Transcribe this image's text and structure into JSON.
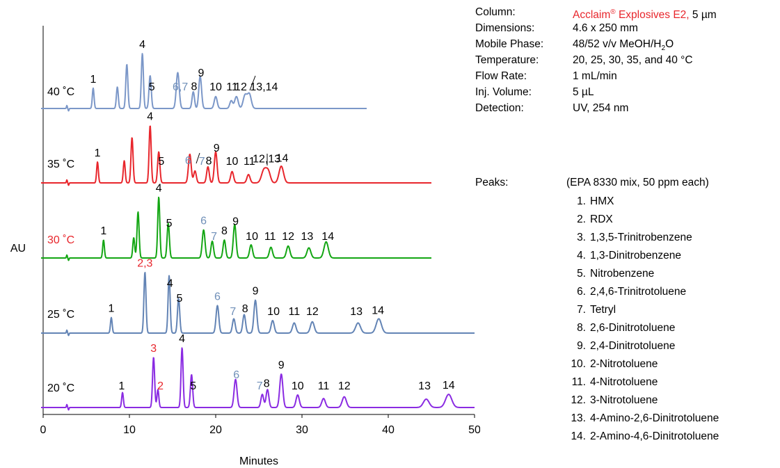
{
  "chart_data": {
    "type": "line",
    "xlabel": "Minutes",
    "ylabel": "AU",
    "xlim": [
      0,
      50
    ],
    "xticks": [
      "0",
      "10",
      "20",
      "30",
      "40",
      "50"
    ],
    "series": [
      {
        "name": "40 ˚C",
        "name_color": "#000000",
        "color": "#7b97c8",
        "end": 37.5,
        "peaks": [
          {
            "t": 5.8,
            "h": 0.34,
            "w": 0.1
          },
          {
            "t": 8.6,
            "h": 0.36,
            "w": 0.11
          },
          {
            "t": 9.7,
            "h": 0.74,
            "w": 0.12
          },
          {
            "t": 11.5,
            "h": 0.92,
            "w": 0.12
          },
          {
            "t": 12.4,
            "h": 0.55,
            "w": 0.13
          },
          {
            "t": 15.6,
            "h": 0.6,
            "w": 0.17
          },
          {
            "t": 17.4,
            "h": 0.28,
            "w": 0.14
          },
          {
            "t": 18.2,
            "h": 0.54,
            "w": 0.16
          },
          {
            "t": 20.0,
            "h": 0.2,
            "w": 0.17
          },
          {
            "t": 21.8,
            "h": 0.13,
            "w": 0.17
          },
          {
            "t": 22.4,
            "h": 0.2,
            "w": 0.2
          },
          {
            "t": 23.4,
            "h": 0.22,
            "w": 0.22
          },
          {
            "t": 23.9,
            "h": 0.24,
            "w": 0.22
          }
        ],
        "labels": [
          {
            "text": "1",
            "t": 5.8,
            "color": "#000000"
          },
          {
            "text": "4",
            "t": 11.5,
            "color": "#000000"
          },
          {
            "text": "5",
            "t": 12.6,
            "color": "#000000"
          },
          {
            "text": "6,7",
            "t": 15.9,
            "color": "#6f8fb8"
          },
          {
            "text": "8",
            "t": 17.5,
            "color": "#000000"
          },
          {
            "text": "9",
            "t": 18.3,
            "color": "#000000"
          },
          {
            "text": "10",
            "t": 20.0,
            "color": "#000000"
          },
          {
            "text": "11",
            "t": 21.9,
            "color": "#000000"
          },
          {
            "text": "12",
            "t": 22.9,
            "color": "#000000"
          },
          {
            "text": "13,14",
            "t": 25.6,
            "color": "#000000"
          }
        ]
      },
      {
        "name": "35 ˚C",
        "name_color": "#000000",
        "color": "#e8262c",
        "end": 45.0,
        "peaks": [
          {
            "t": 6.3,
            "h": 0.35,
            "w": 0.1
          },
          {
            "t": 9.4,
            "h": 0.37,
            "w": 0.11
          },
          {
            "t": 10.3,
            "h": 0.76,
            "w": 0.12
          },
          {
            "t": 12.4,
            "h": 0.96,
            "w": 0.12
          },
          {
            "t": 13.4,
            "h": 0.52,
            "w": 0.13
          },
          {
            "t": 17.0,
            "h": 0.48,
            "w": 0.16
          },
          {
            "t": 17.6,
            "h": 0.2,
            "w": 0.15
          },
          {
            "t": 19.1,
            "h": 0.27,
            "w": 0.15
          },
          {
            "t": 20.0,
            "h": 0.52,
            "w": 0.16
          },
          {
            "t": 21.9,
            "h": 0.19,
            "w": 0.17
          },
          {
            "t": 23.8,
            "h": 0.14,
            "w": 0.18
          },
          {
            "t": 25.6,
            "h": 0.22,
            "w": 0.28
          },
          {
            "t": 26.1,
            "h": 0.18,
            "w": 0.24
          },
          {
            "t": 27.6,
            "h": 0.28,
            "w": 0.26
          }
        ],
        "labels": [
          {
            "text": "1",
            "t": 6.3,
            "color": "#000000"
          },
          {
            "text": "4",
            "t": 12.4,
            "color": "#000000"
          },
          {
            "text": "5",
            "t": 13.7,
            "color": "#000000"
          },
          {
            "text": "6",
            "t": 16.8,
            "color": "#6f8fb8"
          },
          {
            "text": "7",
            "t": 18.4,
            "color": "#6f8fb8"
          },
          {
            "text": "8",
            "t": 19.2,
            "color": "#000000"
          },
          {
            "text": "9",
            "t": 20.1,
            "color": "#000000"
          },
          {
            "text": "10",
            "t": 21.9,
            "color": "#000000"
          },
          {
            "text": "11",
            "t": 23.9,
            "color": "#000000"
          },
          {
            "text": "12,13",
            "t": 25.9,
            "color": "#000000"
          },
          {
            "text": "14",
            "t": 27.7,
            "color": "#000000"
          }
        ]
      },
      {
        "name": "30 ˚C",
        "name_color": "#e8262c",
        "color": "#13a613",
        "end": 45.0,
        "peaks": [
          {
            "t": 7.0,
            "h": 0.3,
            "w": 0.1
          },
          {
            "t": 10.5,
            "h": 0.34,
            "w": 0.11
          },
          {
            "t": 11.0,
            "h": 0.77,
            "w": 0.12
          },
          {
            "t": 13.4,
            "h": 1.02,
            "w": 0.12
          },
          {
            "t": 14.5,
            "h": 0.58,
            "w": 0.13
          },
          {
            "t": 18.6,
            "h": 0.47,
            "w": 0.16
          },
          {
            "t": 19.6,
            "h": 0.28,
            "w": 0.15
          },
          {
            "t": 21.0,
            "h": 0.3,
            "w": 0.15
          },
          {
            "t": 22.2,
            "h": 0.56,
            "w": 0.16
          },
          {
            "t": 24.1,
            "h": 0.22,
            "w": 0.17
          },
          {
            "t": 26.4,
            "h": 0.18,
            "w": 0.18
          },
          {
            "t": 28.4,
            "h": 0.2,
            "w": 0.2
          },
          {
            "t": 30.8,
            "h": 0.17,
            "w": 0.22
          },
          {
            "t": 32.8,
            "h": 0.27,
            "w": 0.25
          }
        ],
        "labels": [
          {
            "text": "1",
            "t": 7.0,
            "color": "#000000"
          },
          {
            "text": "4",
            "t": 13.4,
            "color": "#000000"
          },
          {
            "text": "5",
            "t": 14.6,
            "color": "#000000"
          },
          {
            "text": "6",
            "t": 18.6,
            "color": "#6f8fb8"
          },
          {
            "text": "7",
            "t": 19.8,
            "color": "#6f8fb8"
          },
          {
            "text": "8",
            "t": 21.0,
            "color": "#000000"
          },
          {
            "text": "9",
            "t": 22.3,
            "color": "#000000"
          },
          {
            "text": "10",
            "t": 24.2,
            "color": "#000000"
          },
          {
            "text": "11",
            "t": 26.3,
            "color": "#000000"
          },
          {
            "text": "12",
            "t": 28.4,
            "color": "#000000"
          },
          {
            "text": "13",
            "t": 30.6,
            "color": "#000000"
          },
          {
            "text": "14",
            "t": 33.0,
            "color": "#000000"
          }
        ]
      },
      {
        "name": "25 ˚C",
        "name_color": "#000000",
        "color": "#6384b5",
        "end": 50.0,
        "peaks": [
          {
            "t": 7.9,
            "h": 0.26,
            "w": 0.1
          },
          {
            "t": 11.8,
            "h": 1.02,
            "w": 0.12
          },
          {
            "t": 14.6,
            "h": 0.96,
            "w": 0.12
          },
          {
            "t": 15.7,
            "h": 0.58,
            "w": 0.13
          },
          {
            "t": 20.2,
            "h": 0.46,
            "w": 0.16
          },
          {
            "t": 22.1,
            "h": 0.24,
            "w": 0.16
          },
          {
            "t": 23.3,
            "h": 0.31,
            "w": 0.16
          },
          {
            "t": 24.6,
            "h": 0.55,
            "w": 0.17
          },
          {
            "t": 26.6,
            "h": 0.21,
            "w": 0.18
          },
          {
            "t": 29.1,
            "h": 0.17,
            "w": 0.2
          },
          {
            "t": 31.2,
            "h": 0.19,
            "w": 0.22
          },
          {
            "t": 36.5,
            "h": 0.17,
            "w": 0.28
          },
          {
            "t": 38.9,
            "h": 0.24,
            "w": 0.3
          }
        ],
        "labels": [
          {
            "text": "1",
            "t": 7.9,
            "color": "#000000"
          },
          {
            "text": "2,3",
            "t": 11.8,
            "color": "#e8262c"
          },
          {
            "text": "4",
            "t": 14.7,
            "color": "#000000"
          },
          {
            "text": "5",
            "t": 15.8,
            "color": "#000000"
          },
          {
            "text": "6",
            "t": 20.2,
            "color": "#6f8fb8"
          },
          {
            "text": "7",
            "t": 22.0,
            "color": "#6f8fb8"
          },
          {
            "text": "8",
            "t": 23.4,
            "color": "#000000"
          },
          {
            "text": "9",
            "t": 24.6,
            "color": "#000000"
          },
          {
            "text": "10",
            "t": 26.7,
            "color": "#000000"
          },
          {
            "text": "11",
            "t": 29.1,
            "color": "#000000"
          },
          {
            "text": "12",
            "t": 31.2,
            "color": "#000000"
          },
          {
            "text": "13",
            "t": 36.3,
            "color": "#000000"
          },
          {
            "text": "14",
            "t": 38.8,
            "color": "#000000"
          }
        ]
      },
      {
        "name": "20 ˚C",
        "name_color": "#000000",
        "color": "#8a2be2",
        "end": 50.0,
        "peaks": [
          {
            "t": 9.2,
            "h": 0.25,
            "w": 0.1
          },
          {
            "t": 12.8,
            "h": 0.84,
            "w": 0.12
          },
          {
            "t": 13.3,
            "h": 0.3,
            "w": 0.11
          },
          {
            "t": 16.1,
            "h": 1.0,
            "w": 0.12
          },
          {
            "t": 17.2,
            "h": 0.55,
            "w": 0.13
          },
          {
            "t": 22.3,
            "h": 0.47,
            "w": 0.17
          },
          {
            "t": 25.4,
            "h": 0.22,
            "w": 0.16
          },
          {
            "t": 26.0,
            "h": 0.3,
            "w": 0.16
          },
          {
            "t": 27.6,
            "h": 0.56,
            "w": 0.18
          },
          {
            "t": 29.5,
            "h": 0.21,
            "w": 0.19
          },
          {
            "t": 32.5,
            "h": 0.15,
            "w": 0.21
          },
          {
            "t": 34.9,
            "h": 0.18,
            "w": 0.24
          },
          {
            "t": 44.4,
            "h": 0.14,
            "w": 0.33
          },
          {
            "t": 47.0,
            "h": 0.22,
            "w": 0.36
          }
        ],
        "labels": [
          {
            "text": "1",
            "t": 9.1,
            "color": "#000000"
          },
          {
            "text": "3",
            "t": 12.8,
            "color": "#e8262c"
          },
          {
            "text": "2",
            "t": 13.6,
            "color": "#e8262c"
          },
          {
            "text": "4",
            "t": 16.1,
            "color": "#000000"
          },
          {
            "text": "5",
            "t": 17.4,
            "color": "#000000"
          },
          {
            "text": "6",
            "t": 22.4,
            "color": "#6f8fb8"
          },
          {
            "text": "7",
            "t": 25.1,
            "color": "#6f8fb8"
          },
          {
            "text": "8",
            "t": 25.9,
            "color": "#000000"
          },
          {
            "text": "9",
            "t": 27.6,
            "color": "#000000"
          },
          {
            "text": "10",
            "t": 29.5,
            "color": "#000000"
          },
          {
            "text": "11",
            "t": 32.5,
            "color": "#000000"
          },
          {
            "text": "12",
            "t": 34.9,
            "color": "#000000"
          },
          {
            "text": "13",
            "t": 44.2,
            "color": "#000000"
          },
          {
            "text": "14",
            "t": 47.0,
            "color": "#000000"
          }
        ]
      }
    ]
  },
  "conditions": {
    "column_label": "Column:",
    "column_name": "Acclaim",
    "column_reg": "®",
    "column_name_rest": " Explosives E2,",
    "column_size": " 5 µm",
    "dimensions_label": "Dimensions:",
    "dimensions": "4.6 x 250 mm",
    "mobile_label": "Mobile Phase:",
    "mobile_a": "48/52 v/v MeOH/H",
    "mobile_sub": "2",
    "mobile_b": "O",
    "temperature_label": "Temperature:",
    "temperature": "20, 25, 30, 35, and 40 °C",
    "flow_label": "Flow Rate:",
    "flow": "1 mL/min",
    "inj_label": "Inj. Volume:",
    "inj": "5 µL",
    "detection_label": "Detection:",
    "detection": "UV, 254 nm"
  },
  "peaks": {
    "label": "Peaks:",
    "note": "(EPA 8330 mix, 50 ppm each)",
    "items": [
      {
        "n": "1.",
        "name": "HMX"
      },
      {
        "n": "2.",
        "name": "RDX"
      },
      {
        "n": "3.",
        "name": "1,3,5-Trinitrobenzene"
      },
      {
        "n": "4.",
        "name": "1,3-Dinitrobenzene"
      },
      {
        "n": "5.",
        "name": "Nitrobenzene"
      },
      {
        "n": "6.",
        "name": "2,4,6-Trinitrotoluene"
      },
      {
        "n": "7.",
        "name": "Tetryl"
      },
      {
        "n": "8.",
        "name": "2,6-Dinitrotoluene"
      },
      {
        "n": "9.",
        "name": "2,4-Dinitrotoluene"
      },
      {
        "n": "10.",
        "name": "2-Nitrotoluene"
      },
      {
        "n": "11.",
        "name": "4-Nitrotoluene"
      },
      {
        "n": "12.",
        "name": "3-Nitrotoluene"
      },
      {
        "n": "13.",
        "name": "4-Amino-2,6-Dinitrotoluene"
      },
      {
        "n": "14.",
        "name": "2-Amino-4,6-Dinitrotoluene"
      }
    ]
  }
}
